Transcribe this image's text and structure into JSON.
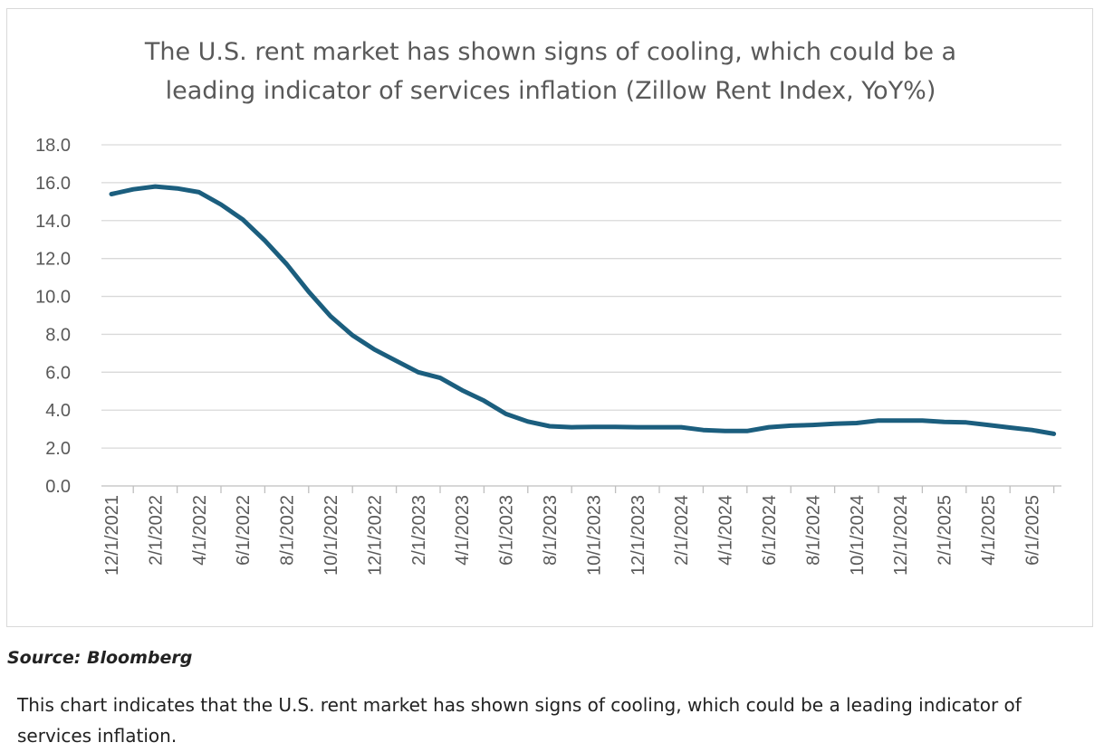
{
  "chart_data": {
    "type": "line",
    "title": "The U.S. rent market has shown signs of cooling, which could be a leading indicator of services inflation (Zillow Rent Index, YoY%)",
    "title_lines": [
      "The U.S. rent market has shown signs of cooling, which could be a",
      "leading indicator of services inflation (Zillow Rent Index, YoY%)"
    ],
    "xlabel": "",
    "ylabel": "",
    "ylim": [
      0,
      18
    ],
    "yticks": [
      "0.0",
      "2.0",
      "4.0",
      "6.0",
      "8.0",
      "10.0",
      "12.0",
      "14.0",
      "16.0",
      "18.0"
    ],
    "grid": true,
    "legend": "none",
    "line_color": "#1b5e7e",
    "x": [
      "12/1/2021",
      "1/1/2022",
      "2/1/2022",
      "3/1/2022",
      "4/1/2022",
      "5/1/2022",
      "6/1/2022",
      "7/1/2022",
      "8/1/2022",
      "9/1/2022",
      "10/1/2022",
      "11/1/2022",
      "12/1/2022",
      "1/1/2023",
      "2/1/2023",
      "3/1/2023",
      "4/1/2023",
      "5/1/2023",
      "6/1/2023",
      "7/1/2023",
      "8/1/2023",
      "9/1/2023",
      "10/1/2023",
      "11/1/2023",
      "12/1/2023",
      "1/1/2024",
      "2/1/2024",
      "3/1/2024",
      "4/1/2024",
      "5/1/2024",
      "6/1/2024",
      "7/1/2024",
      "8/1/2024",
      "9/1/2024",
      "10/1/2024",
      "11/1/2024",
      "12/1/2024",
      "1/1/2025",
      "2/1/2025",
      "3/1/2025",
      "4/1/2025",
      "5/1/2025",
      "6/1/2025",
      "7/1/2025"
    ],
    "x_tick_labels": [
      "12/1/2021",
      "2/1/2022",
      "4/1/2022",
      "6/1/2022",
      "8/1/2022",
      "10/1/2022",
      "12/1/2022",
      "2/1/2023",
      "4/1/2023",
      "6/1/2023",
      "8/1/2023",
      "10/1/2023",
      "12/1/2023",
      "2/1/2024",
      "4/1/2024",
      "6/1/2024",
      "8/1/2024",
      "10/1/2024",
      "12/1/2024",
      "2/1/2025",
      "4/1/2025",
      "6/1/2025"
    ],
    "series": [
      {
        "values": [
          15.4,
          15.65,
          15.8,
          15.7,
          15.5,
          14.85,
          14.05,
          12.95,
          11.7,
          10.25,
          8.95,
          7.95,
          7.2,
          6.6,
          6.0,
          5.7,
          5.05,
          4.5,
          3.8,
          3.4,
          3.15,
          3.1,
          3.12,
          3.12,
          3.1,
          3.1,
          3.1,
          2.95,
          2.9,
          2.9,
          3.1,
          3.18,
          3.22,
          3.28,
          3.32,
          3.45,
          3.45,
          3.45,
          3.38,
          3.35,
          3.22,
          3.08,
          2.95,
          2.75
        ]
      }
    ]
  },
  "source_note": "Source: Bloomberg",
  "caption": "This chart indicates that the U.S. rent market has shown signs of cooling, which could be a leading indicator of services inflation."
}
